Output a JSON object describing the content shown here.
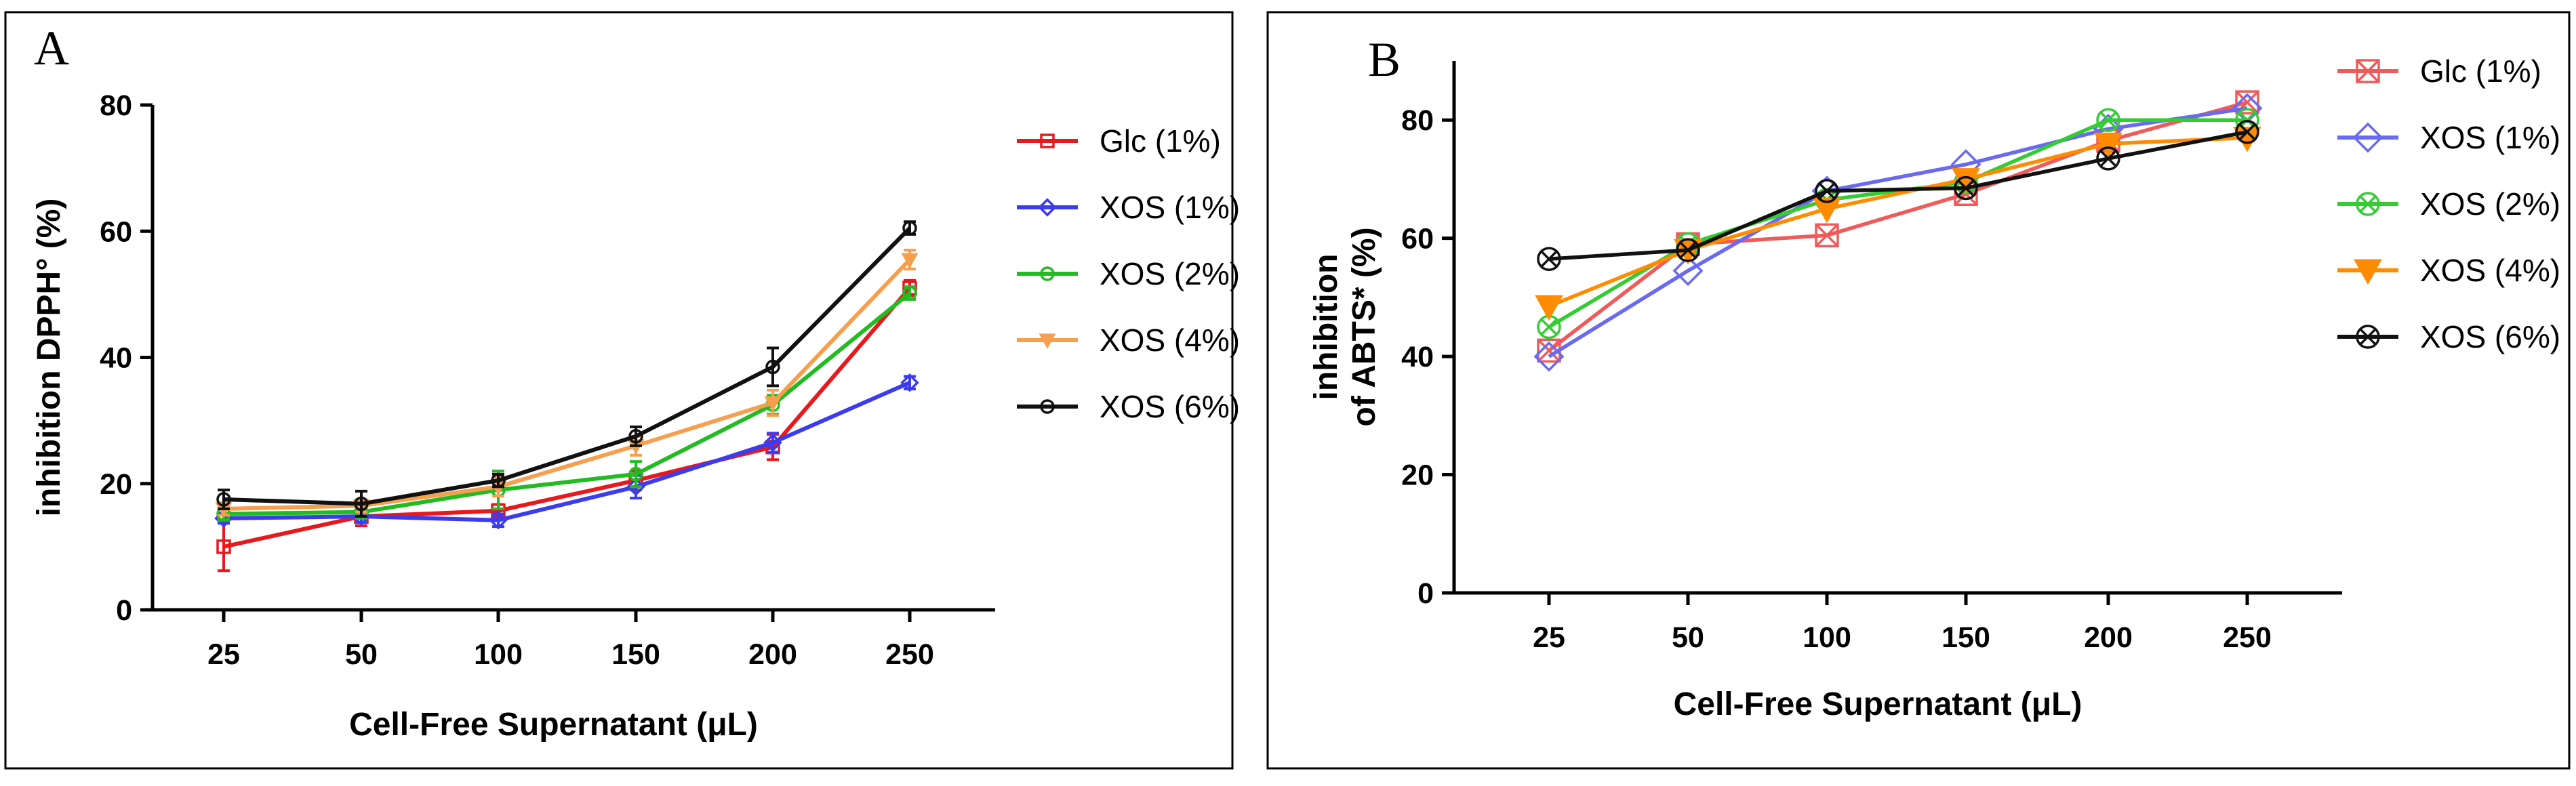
{
  "chart_data": [
    {
      "panel": "A",
      "type": "line",
      "categories": [
        "25",
        "50",
        "100",
        "150",
        "200",
        "250"
      ],
      "xlabel": "Cell-Free Supernatant (μL)",
      "ylabel": "inhibition DPPH° (%)",
      "ylabel_lines": [
        "inhibition DPPH° (%)"
      ],
      "ylim": [
        0,
        80
      ],
      "yticks": [
        0,
        20,
        40,
        60,
        80
      ],
      "legend_position": "right",
      "series": [
        {
          "name": "Glc (1%)",
          "color": "#e8191d",
          "marker": "square",
          "values": [
            10.0,
            14.8,
            15.7,
            20.5,
            25.8,
            51.0
          ],
          "errors": [
            3.8,
            1.5,
            1.0,
            1.5,
            2.0,
            1.2
          ]
        },
        {
          "name": "XOS (1%)",
          "color": "#3b3bf0",
          "marker": "diamond",
          "values": [
            14.5,
            14.8,
            14.2,
            19.5,
            26.5,
            36.0
          ],
          "errors": [
            0.8,
            1.0,
            1.0,
            1.8,
            1.5,
            1.0
          ]
        },
        {
          "name": "XOS (2%)",
          "color": "#22bb22",
          "marker": "circle",
          "values": [
            15.2,
            15.5,
            19.0,
            21.5,
            32.5,
            50.2
          ],
          "errors": [
            1.0,
            1.0,
            3.0,
            2.0,
            1.5,
            1.0
          ]
        },
        {
          "name": "XOS (4%)",
          "color": "#f6a04f",
          "marker": "triangle-down",
          "values": [
            16.0,
            16.5,
            19.5,
            26.0,
            32.8,
            55.5
          ],
          "errors": [
            1.0,
            1.0,
            1.5,
            1.5,
            2.0,
            1.5
          ]
        },
        {
          "name": "XOS (6%)",
          "color": "#111111",
          "marker": "circle",
          "values": [
            17.5,
            16.8,
            20.5,
            27.5,
            38.5,
            60.5
          ],
          "errors": [
            1.5,
            2.0,
            1.0,
            1.5,
            3.0,
            1.0
          ]
        }
      ]
    },
    {
      "panel": "B",
      "type": "line",
      "categories": [
        "25",
        "50",
        "100",
        "150",
        "200",
        "250"
      ],
      "xlabel": "Cell-Free Supernatant (μL)",
      "ylabel": "inhibition of ABTS* (%)",
      "ylabel_lines": [
        "inhibition",
        "of ABTS* (%)"
      ],
      "ylim": [
        0,
        90
      ],
      "yticks": [
        0,
        20,
        40,
        60,
        80
      ],
      "legend_position": "top-right",
      "series": [
        {
          "name": "Glc (1%)",
          "color": "#f05a5a",
          "marker": "square-x",
          "values": [
            41.0,
            59.0,
            60.5,
            67.5,
            76.5,
            83.0
          ]
        },
        {
          "name": "XOS (1%)",
          "color": "#6a6af0",
          "marker": "diamond",
          "values": [
            40.0,
            54.5,
            68.0,
            72.5,
            78.5,
            82.0
          ]
        },
        {
          "name": "XOS (2%)",
          "color": "#33cc33",
          "marker": "circle-x",
          "values": [
            45.0,
            59.0,
            66.5,
            69.5,
            80.0,
            80.0
          ]
        },
        {
          "name": "XOS (4%)",
          "color": "#ff8c00",
          "marker": "triangle-down",
          "values": [
            48.5,
            58.0,
            65.0,
            70.0,
            76.0,
            77.0
          ]
        },
        {
          "name": "XOS (6%)",
          "color": "#111111",
          "marker": "circle-x",
          "values": [
            56.5,
            58.0,
            68.0,
            68.5,
            73.5,
            78.0
          ]
        }
      ]
    }
  ]
}
